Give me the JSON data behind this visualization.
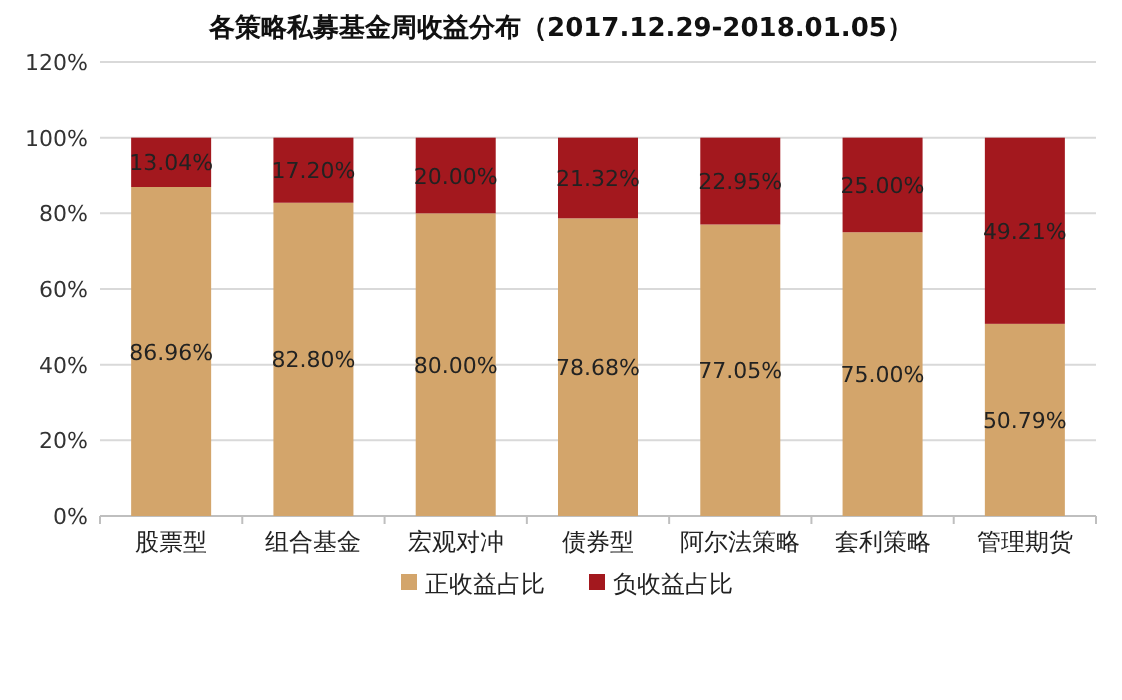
{
  "chart_data": {
    "type": "bar",
    "title": "各策略私募基金周收益分布（2017.12.29-2018.01.05）",
    "stacked": true,
    "categories": [
      "股票型",
      "组合基金",
      "宏观对冲",
      "债券型",
      "阿尔法策略",
      "套利策略",
      "管理期货"
    ],
    "series": [
      {
        "name": "正收益占比",
        "color": "#d3a56b",
        "values": [
          86.96,
          82.8,
          80.0,
          78.68,
          77.05,
          75.0,
          50.79
        ],
        "value_labels": [
          "86.96%",
          "82.80%",
          "80.00%",
          "78.68%",
          "77.05%",
          "75.00%",
          "50.79%"
        ]
      },
      {
        "name": "负收益占比",
        "color": "#a3181e",
        "values": [
          13.04,
          17.2,
          20.0,
          21.32,
          22.95,
          25.0,
          49.21
        ],
        "value_labels": [
          "13.04%",
          "17.20%",
          "20.00%",
          "21.32%",
          "22.95%",
          "25.00%",
          "49.21%"
        ]
      }
    ],
    "ylim": [
      0,
      120
    ],
    "yticks": [
      {
        "value": 0,
        "label": "0%"
      },
      {
        "value": 20,
        "label": "20%"
      },
      {
        "value": 40,
        "label": "40%"
      },
      {
        "value": 60,
        "label": "60%"
      },
      {
        "value": 80,
        "label": "80%"
      },
      {
        "value": 100,
        "label": "100%"
      },
      {
        "value": 120,
        "label": "120%"
      }
    ],
    "grid": "y",
    "legend": "bottom"
  }
}
